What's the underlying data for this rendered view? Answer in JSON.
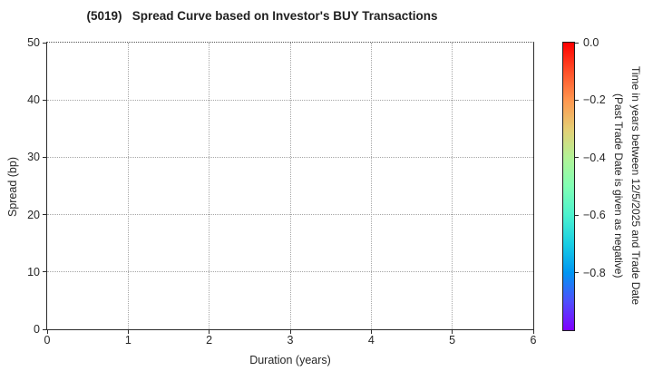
{
  "chart_data": {
    "type": "scatter",
    "title": "(5019)   Spread Curve based on Investor's BUY Transactions",
    "xlabel": "Duration (years)",
    "ylabel": "Spread (bp)",
    "xlim": [
      0,
      6
    ],
    "ylim": [
      0,
      50
    ],
    "x_ticks": [
      0,
      1,
      2,
      3,
      4,
      5,
      6
    ],
    "y_ticks": [
      0,
      10,
      20,
      30,
      40,
      50
    ],
    "grid": "dotted",
    "points": [],
    "series": [],
    "legend": null,
    "colorbar": {
      "label_line1": "Time in years between 12/5/2025 and Trade Date",
      "label_line2": "(Past Trade Date is given as negative)",
      "tick_labels": [
        "0.0",
        "−0.2",
        "−0.4",
        "−0.6",
        "−0.8"
      ],
      "tick_values": [
        0.0,
        -0.2,
        -0.4,
        -0.6,
        -0.8
      ],
      "range_top_to_bottom": [
        0.0,
        -1.0
      ],
      "colormap": "rainbow",
      "gradient_top_to_bottom": [
        "#ff0000",
        "#ff4f28",
        "#ff964f",
        "#e5ce74",
        "#b2f296",
        "#80ffb4",
        "#4cf2ce",
        "#19cee3",
        "#0096f2",
        "#4f4ffc",
        "#8000ff"
      ]
    },
    "colors": {
      "background": "#ffffff",
      "text": "#262626",
      "spine": "#2b2b2b",
      "gridline": "#a6a6a6"
    }
  }
}
